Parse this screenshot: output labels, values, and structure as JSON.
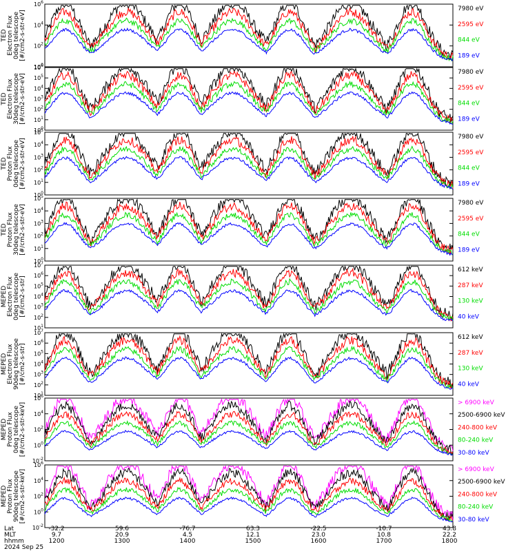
{
  "chart_data": {
    "type": "line",
    "panels": [
      {
        "ylabel": [
          "TED",
          "Electron Flux",
          "0deg telescope",
          "[#/cm2-s-str-eV]"
        ],
        "ylim": [
          1,
          1000000
        ],
        "ticks": [
          {
            "base": "10",
            "exp": "6"
          },
          {
            "base": "10",
            "exp": "4"
          },
          {
            "base": "10",
            "exp": "2"
          },
          {
            "base": "10",
            "exp": "0"
          }
        ],
        "legend": [
          {
            "label": "7980 eV",
            "color": "#000000"
          },
          {
            "label": "2595 eV",
            "color": "#ff0000"
          },
          {
            "label": "844 eV",
            "color": "#00dd00"
          },
          {
            "label": "189 eV",
            "color": "#0000ff"
          }
        ]
      },
      {
        "ylabel": [
          "TED",
          "Electron Flux",
          "30deg telescope",
          "[#/cm2-s-str-eV]"
        ],
        "ylim": [
          1,
          1000000
        ],
        "ticks": [
          {
            "base": "10",
            "exp": "6"
          },
          {
            "base": "10",
            "exp": "5"
          },
          {
            "base": "10",
            "exp": "4"
          },
          {
            "base": "10",
            "exp": "3"
          },
          {
            "base": "10",
            "exp": "2"
          },
          {
            "base": "10",
            "exp": "1"
          },
          {
            "base": "10",
            "exp": "0"
          }
        ],
        "legend": [
          {
            "label": "7980 eV",
            "color": "#000000"
          },
          {
            "label": "2595 eV",
            "color": "#ff0000"
          },
          {
            "label": "844 eV",
            "color": "#00dd00"
          },
          {
            "label": "189 eV",
            "color": "#0000ff"
          }
        ]
      },
      {
        "ylabel": [
          "TED",
          "Proton Flux",
          "0deg telescope",
          "[#/cm2-s-str-eV]"
        ],
        "ylim": [
          1,
          100000
        ],
        "ticks": [
          {
            "base": "10",
            "exp": "5"
          },
          {
            "base": "10",
            "exp": "4"
          },
          {
            "base": "10",
            "exp": "3"
          },
          {
            "base": "10",
            "exp": "2"
          },
          {
            "base": "10",
            "exp": "1"
          },
          {
            "base": "10",
            "exp": "0"
          }
        ],
        "legend": [
          {
            "label": "7980 eV",
            "color": "#000000"
          },
          {
            "label": "2595 eV",
            "color": "#ff0000"
          },
          {
            "label": "844 eV",
            "color": "#00dd00"
          },
          {
            "label": "189 eV",
            "color": "#0000ff"
          }
        ]
      },
      {
        "ylabel": [
          "TED",
          "Proton Flux",
          "30deg telescope",
          "[#/cm2-s-str-eV]"
        ],
        "ylim": [
          1,
          100000
        ],
        "ticks": [
          {
            "base": "10",
            "exp": "5"
          },
          {
            "base": "10",
            "exp": "4"
          },
          {
            "base": "10",
            "exp": "3"
          },
          {
            "base": "10",
            "exp": "2"
          },
          {
            "base": "10",
            "exp": "1"
          },
          {
            "base": "10",
            "exp": "0"
          }
        ],
        "legend": [
          {
            "label": "7980 eV",
            "color": "#000000"
          },
          {
            "label": "2595 eV",
            "color": "#ff0000"
          },
          {
            "label": "844 eV",
            "color": "#00dd00"
          },
          {
            "label": "189 eV",
            "color": "#0000ff"
          }
        ]
      },
      {
        "ylabel": [
          "MEPED",
          "Electron Flux",
          "0deg telescope",
          "[#/cm2-s-str]"
        ],
        "ylim": [
          10,
          10000000
        ],
        "ticks": [
          {
            "base": "10",
            "exp": "7"
          },
          {
            "base": "10",
            "exp": "6"
          },
          {
            "base": "10",
            "exp": "5"
          },
          {
            "base": "10",
            "exp": "4"
          },
          {
            "base": "10",
            "exp": "3"
          },
          {
            "base": "10",
            "exp": "2"
          },
          {
            "base": "10",
            "exp": "1"
          }
        ],
        "legend": [
          {
            "label": "612 keV",
            "color": "#000000"
          },
          {
            "label": "287 keV",
            "color": "#ff0000"
          },
          {
            "label": "130 keV",
            "color": "#00dd00"
          },
          {
            "label": "40 keV",
            "color": "#0000ff"
          }
        ]
      },
      {
        "ylabel": [
          "MEPED",
          "Electron Flux",
          "90deg telescope",
          "[#/cm2-s-str]"
        ],
        "ylim": [
          10,
          10000000
        ],
        "ticks": [
          {
            "base": "10",
            "exp": "7"
          },
          {
            "base": "10",
            "exp": "6"
          },
          {
            "base": "10",
            "exp": "5"
          },
          {
            "base": "10",
            "exp": "4"
          },
          {
            "base": "10",
            "exp": "3"
          },
          {
            "base": "10",
            "exp": "2"
          },
          {
            "base": "10",
            "exp": "1"
          }
        ],
        "legend": [
          {
            "label": "612 keV",
            "color": "#000000"
          },
          {
            "label": "287 keV",
            "color": "#ff0000"
          },
          {
            "label": "130 keV",
            "color": "#00dd00"
          },
          {
            "label": "40 keV",
            "color": "#0000ff"
          }
        ]
      },
      {
        "ylabel": [
          "MEPED",
          "Proton Flux",
          "0deg telescope",
          "[#/cm2-s-str-keV]"
        ],
        "ylim": [
          0.01,
          1000000
        ],
        "ticks": [
          {
            "base": "10",
            "exp": "6"
          },
          {
            "base": "10",
            "exp": "4"
          },
          {
            "base": "10",
            "exp": "2"
          },
          {
            "base": "10",
            "exp": "0"
          },
          {
            "base": "10",
            "exp": "-2"
          }
        ],
        "legend": [
          {
            "label": "> 6900 keV",
            "color": "#ff00ff"
          },
          {
            "label": "2500-6900 keV",
            "color": "#000000"
          },
          {
            "label": "240-800 keV",
            "color": "#ff0000"
          },
          {
            "label": "80-240 keV",
            "color": "#00dd00"
          },
          {
            "label": "30-80 keV",
            "color": "#0000ff"
          }
        ]
      },
      {
        "ylabel": [
          "MEPED",
          "Proton Flux",
          "90deg telescope",
          "[#/cm2-s-str-keV]"
        ],
        "ylim": [
          0.01,
          1000000
        ],
        "ticks": [
          {
            "base": "10",
            "exp": "6"
          },
          {
            "base": "10",
            "exp": "4"
          },
          {
            "base": "10",
            "exp": "2"
          },
          {
            "base": "10",
            "exp": "0"
          },
          {
            "base": "10",
            "exp": "-2"
          }
        ],
        "legend": [
          {
            "label": "> 6900 keV",
            "color": "#ff00ff"
          },
          {
            "label": "2500-6900 keV",
            "color": "#000000"
          },
          {
            "label": "240-800 keV",
            "color": "#ff0000"
          },
          {
            "label": "80-240 keV",
            "color": "#00dd00"
          },
          {
            "label": "30-80 keV",
            "color": "#0000ff"
          }
        ]
      }
    ],
    "x_axis": {
      "row_labels": [
        "Lat",
        "MLT",
        "hhmm"
      ],
      "date": "2024 Sep 25",
      "columns": [
        {
          "lat": "-32.2",
          "mlt": "9.7",
          "hhmm": "1200"
        },
        {
          "lat": "59.6",
          "mlt": "20.9",
          "hhmm": "1300"
        },
        {
          "lat": "-76.7",
          "mlt": "4.5",
          "hhmm": "1400"
        },
        {
          "lat": "63.3",
          "mlt": "12.1",
          "hhmm": "1500"
        },
        {
          "lat": "-22.5",
          "mlt": "23.0",
          "hhmm": "1600"
        },
        {
          "lat": "-10.7",
          "mlt": "10.8",
          "hhmm": "1700"
        },
        {
          "lat": "43.8",
          "mlt": "22.2",
          "hhmm": "1800"
        }
      ]
    }
  }
}
